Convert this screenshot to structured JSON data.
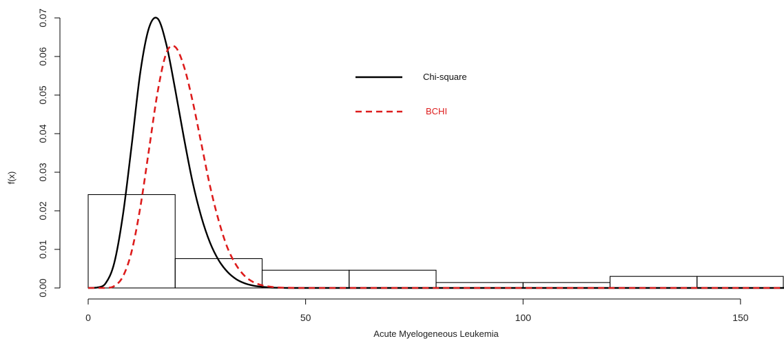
{
  "chart_data": {
    "type": "histogram",
    "title": "",
    "xlabel": "Acute Myelogeneous Leukemia",
    "ylabel": "f(x)",
    "xlim": [
      0,
      160
    ],
    "ylim": [
      0,
      0.07
    ],
    "xticks": [
      0,
      50,
      100,
      150
    ],
    "xtick_labels": [
      "0",
      "50",
      "100",
      "150"
    ],
    "yticks": [
      0.0,
      0.01,
      0.02,
      0.03,
      0.04,
      0.05,
      0.06,
      0.07
    ],
    "ytick_labels": [
      "0.00",
      "0.01",
      "0.02",
      "0.03",
      "0.04",
      "0.05",
      "0.06",
      "0.07"
    ],
    "grid": false,
    "legend_position": "top-center",
    "histogram": {
      "bins": [
        {
          "x0": 0,
          "x1": 20,
          "density": 0.0242
        },
        {
          "x0": 20,
          "x1": 40,
          "density": 0.0076
        },
        {
          "x0": 40,
          "x1": 60,
          "density": 0.0046
        },
        {
          "x0": 60,
          "x1": 80,
          "density": 0.0046
        },
        {
          "x0": 80,
          "x1": 100,
          "density": 0.0014
        },
        {
          "x0": 100,
          "x1": 120,
          "density": 0.0014
        },
        {
          "x0": 120,
          "x1": 140,
          "density": 0.003
        },
        {
          "x0": 140,
          "x1": 160,
          "density": 0.003
        }
      ]
    },
    "series": [
      {
        "name": "Chi-square",
        "color": "#000000",
        "line_style": "solid",
        "x": [
          0,
          2,
          4,
          6,
          8,
          10,
          12,
          14,
          16,
          18,
          20,
          22,
          24,
          26,
          28,
          30,
          32,
          34,
          36,
          38,
          40,
          42,
          44,
          46,
          50,
          60,
          80,
          100,
          120,
          140,
          160
        ],
        "y": [
          0,
          0.0001,
          0.0012,
          0.0065,
          0.019,
          0.037,
          0.056,
          0.0675,
          0.0698,
          0.063,
          0.0515,
          0.039,
          0.0275,
          0.0185,
          0.0118,
          0.0072,
          0.0042,
          0.0023,
          0.0012,
          0.0006,
          0.0003,
          0.0001,
          5e-05,
          0,
          0,
          0,
          0,
          0,
          0,
          0,
          0
        ]
      },
      {
        "name": "BCHI",
        "color": "#dd1c1c",
        "line_style": "dashed",
        "x": [
          0,
          4,
          6,
          8,
          10,
          12,
          14,
          16,
          18,
          20,
          22,
          24,
          26,
          28,
          30,
          32,
          34,
          36,
          38,
          40,
          42,
          44,
          46,
          48,
          50,
          60,
          80,
          100,
          120,
          140,
          160
        ],
        "y": [
          0,
          0,
          0.0005,
          0.003,
          0.0095,
          0.021,
          0.036,
          0.051,
          0.061,
          0.0625,
          0.0575,
          0.0485,
          0.0375,
          0.0265,
          0.0175,
          0.0105,
          0.006,
          0.0031,
          0.0015,
          0.0007,
          0.0003,
          0.0001,
          5e-05,
          0,
          0,
          0,
          0,
          0,
          0,
          0,
          0
        ]
      }
    ]
  }
}
